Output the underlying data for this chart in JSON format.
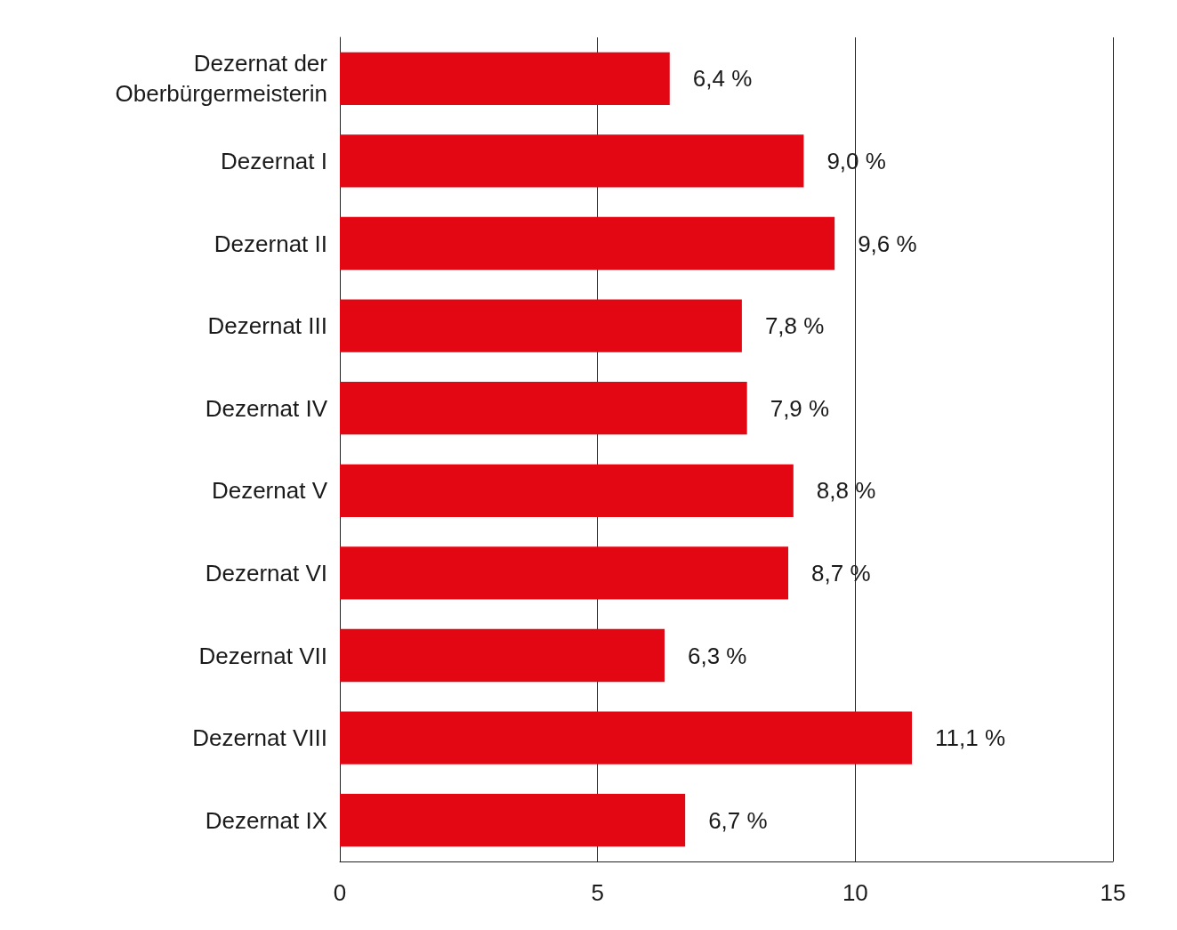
{
  "chart_data": {
    "type": "bar",
    "orientation": "horizontal",
    "categories": [
      "Dezernat der\nOberbürgermeisterin",
      "Dezernat I",
      "Dezernat II",
      "Dezernat III",
      "Dezernat IV",
      "Dezernat V",
      "Dezernat VI",
      "Dezernat VII",
      "Dezernat VIII",
      "Dezernat IX"
    ],
    "values": [
      6.4,
      9.0,
      9.6,
      7.8,
      7.9,
      8.8,
      8.7,
      6.3,
      11.1,
      6.7
    ],
    "value_labels": [
      "6,4 %",
      "9,0 %",
      "9,6 %",
      "7,8 %",
      "7,9 %",
      "8,8 %",
      "8,7 %",
      "6,3 %",
      "11,1 %",
      "6,7 %"
    ],
    "color": "#e30613",
    "xlim": [
      0,
      15
    ],
    "xticks": [
      0,
      5,
      10,
      15
    ],
    "grid": "x"
  }
}
